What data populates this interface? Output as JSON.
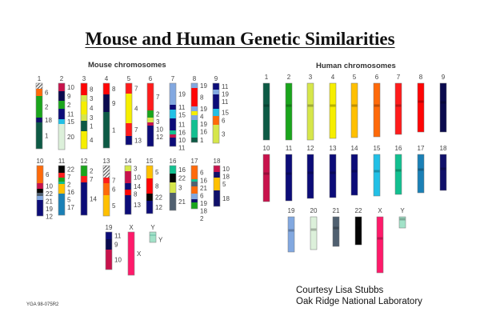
{
  "title": "Mouse and Human Genetic Similarities",
  "mouse": {
    "heading": "Mouse chromosomes",
    "chromosomes": [
      {
        "name": "1",
        "segments": [
          "",
          "6",
          "2",
          "18",
          "1"
        ]
      },
      {
        "name": "2",
        "segments": [
          "10",
          "9",
          "2",
          "11",
          "15",
          "20"
        ]
      },
      {
        "name": "3",
        "segments": [
          "8",
          "3",
          "4",
          "3",
          "1",
          "4"
        ]
      },
      {
        "name": "4",
        "segments": [
          "8",
          "9",
          "1"
        ]
      },
      {
        "name": "5",
        "segments": [
          "7",
          "4",
          "7",
          "13"
        ]
      },
      {
        "name": "6",
        "segments": [
          "7",
          "2",
          "3",
          "10",
          "12"
        ]
      },
      {
        "name": "7",
        "segments": [
          "19",
          "11",
          "15",
          "11",
          "16",
          "10",
          "11"
        ]
      },
      {
        "name": "8",
        "segments": [
          "19",
          "8",
          "19",
          "4",
          "19",
          "16",
          "1"
        ]
      },
      {
        "name": "9",
        "segments": [
          "11",
          "19",
          "11",
          "15",
          "6",
          "3"
        ]
      },
      {
        "name": "10",
        "segments": [
          "6",
          "10",
          "22",
          "21",
          "19",
          "12"
        ]
      },
      {
        "name": "11",
        "segments": [
          "22",
          "7",
          "2",
          "16",
          "5",
          "17"
        ]
      },
      {
        "name": "12",
        "segments": [
          "2",
          "7",
          "14"
        ]
      },
      {
        "name": "13",
        "segments": [
          "",
          "7",
          "6",
          "5"
        ]
      },
      {
        "name": "14",
        "segments": [
          "3",
          "10",
          "14",
          "8",
          "13"
        ]
      },
      {
        "name": "15",
        "segments": [
          "5",
          "8",
          "22",
          "12"
        ]
      },
      {
        "name": "16",
        "segments": [
          "16",
          "22",
          "3",
          "21"
        ]
      },
      {
        "name": "17",
        "segments": [
          "6",
          "16",
          "21",
          "6",
          "19",
          "18",
          "2"
        ]
      },
      {
        "name": "18",
        "segments": [
          "10",
          "18",
          "5",
          "18"
        ]
      },
      {
        "name": "19",
        "segments": [
          "11",
          "9",
          "10"
        ]
      },
      {
        "name": "X",
        "segments": [
          "X"
        ]
      },
      {
        "name": "Y",
        "segments": [
          "Y"
        ]
      }
    ]
  },
  "human": {
    "heading": "Human chromosomes",
    "chromosomes": [
      "1",
      "2",
      "3",
      "4",
      "5",
      "6",
      "7",
      "8",
      "9",
      "10",
      "11",
      "12",
      "13",
      "14",
      "15",
      "16",
      "17",
      "18",
      "19",
      "20",
      "21",
      "22",
      "X",
      "Y"
    ]
  },
  "colors": {
    "1": "#0d5a45",
    "2": "#1aa51c",
    "3": "#d6e64a",
    "4": "#f6ee00",
    "5": "#ffc000",
    "6": "#ff6a0a",
    "7": "#ff1c1c",
    "8": "#ff0505",
    "9": "#0a0a4e",
    "10": "#c8124c",
    "11": "#0c0c78",
    "12": "#0c0c78",
    "13": "#0c0c78",
    "14": "#0c0c78",
    "15": "#22c0e6",
    "16": "#12c090",
    "17": "#1a80b6",
    "18": "#10106a",
    "19": "#82a8e0",
    "20": "#dcf0da",
    "21": "#506070",
    "22": "#050505",
    "X": "#ff1a6a",
    "Y": "#a2e2c8"
  },
  "credit": {
    "line1": "Courtesy Lisa Stubbs",
    "line2": "Oak Ridge National Laboratory"
  },
  "code": "YGA 98-075R2"
}
